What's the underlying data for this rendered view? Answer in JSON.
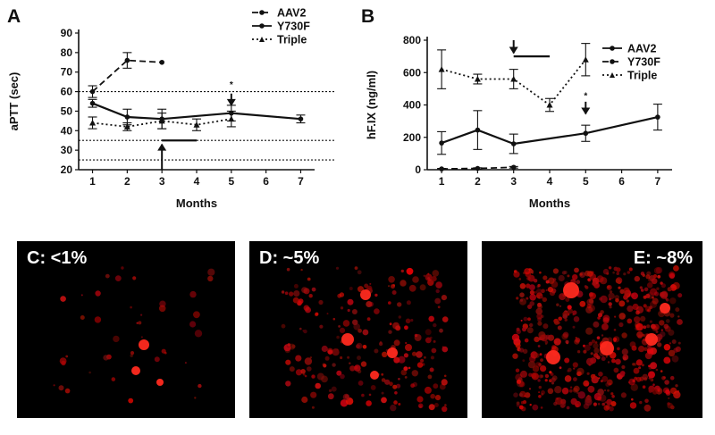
{
  "figure": {
    "panel_a_letter": "A",
    "panel_b_letter": "B",
    "micro": [
      {
        "label": "C: <1%",
        "red_density": 0.02
      },
      {
        "label": "D: ~5%",
        "red_density": 0.05
      },
      {
        "label": "E: ~8%",
        "red_density": 0.08
      }
    ]
  },
  "chart_data": [
    {
      "type": "line",
      "panel": "A",
      "xlabel": "Months",
      "ylabel": "aPTT (sec)",
      "x_ticks": [
        1,
        2,
        3,
        4,
        5,
        6,
        7
      ],
      "y_ticks": [
        20,
        30,
        40,
        50,
        60,
        70,
        80,
        90
      ],
      "xlim": [
        0.6,
        7.4
      ],
      "ylim": [
        20,
        90
      ],
      "legend": [
        "AAV2",
        "Y730F",
        "Triple"
      ],
      "legend_position": "top-right",
      "series": [
        {
          "name": "AAV2",
          "style": "dashed",
          "x": [
            1,
            2,
            3
          ],
          "y": [
            60,
            76,
            75
          ],
          "err": [
            3,
            4,
            0
          ]
        },
        {
          "name": "Y730F",
          "style": "solid",
          "x": [
            1,
            2,
            3,
            5,
            7
          ],
          "y": [
            54,
            47,
            46,
            49,
            46
          ],
          "err": [
            2,
            4,
            5,
            4,
            2
          ]
        },
        {
          "name": "Triple",
          "style": "dotted",
          "x": [
            1,
            2,
            3,
            4,
            5
          ],
          "y": [
            44,
            42,
            45,
            43,
            46
          ],
          "err": [
            3,
            2,
            4,
            3,
            4
          ]
        }
      ],
      "reference_lines": [
        60,
        35,
        25
      ],
      "annotations": [
        {
          "kind": "arrow-up",
          "x": 3,
          "y_from": 20,
          "y_to": 33
        },
        {
          "kind": "arrow-down",
          "x": 5,
          "y_from": 59,
          "y_to": 53
        },
        {
          "kind": "star",
          "x": 5,
          "y": 62,
          "text": "*"
        },
        {
          "kind": "bar",
          "x_from": 3,
          "x_to": 4,
          "y": 35
        }
      ]
    },
    {
      "type": "line",
      "panel": "B",
      "xlabel": "Months",
      "ylabel": "hF.IX (ng/ml)",
      "x_ticks": [
        1,
        2,
        3,
        4,
        5,
        6,
        7
      ],
      "y_ticks": [
        0,
        200,
        400,
        600,
        800
      ],
      "xlim": [
        0.6,
        7.4
      ],
      "ylim": [
        0,
        800
      ],
      "legend": [
        "AAV2",
        "Y730F",
        "Triple"
      ],
      "legend_position": "top-right",
      "series": [
        {
          "name": "AAV2",
          "style": "solid",
          "x": [
            1,
            2,
            3,
            5,
            7
          ],
          "y": [
            165,
            245,
            160,
            225,
            325
          ],
          "err": [
            70,
            120,
            60,
            50,
            80
          ]
        },
        {
          "name": "Y730F",
          "style": "dashed",
          "x": [
            1,
            2,
            3
          ],
          "y": [
            5,
            8,
            15
          ],
          "err": [
            3,
            4,
            5
          ]
        },
        {
          "name": "Triple",
          "style": "dotted",
          "x": [
            1,
            2,
            3,
            4,
            5
          ],
          "y": [
            620,
            560,
            560,
            400,
            680
          ],
          "err": [
            120,
            30,
            60,
            40,
            100
          ]
        }
      ],
      "annotations": [
        {
          "kind": "arrow-down",
          "x": 3,
          "y_from": 800,
          "y_to": 720
        },
        {
          "kind": "arrow-down",
          "x": 5,
          "y_from": 420,
          "y_to": 345
        },
        {
          "kind": "star",
          "x": 5,
          "y": 440,
          "text": "*"
        },
        {
          "kind": "bar",
          "x_from": 3,
          "x_to": 4,
          "y": 700
        }
      ]
    }
  ]
}
